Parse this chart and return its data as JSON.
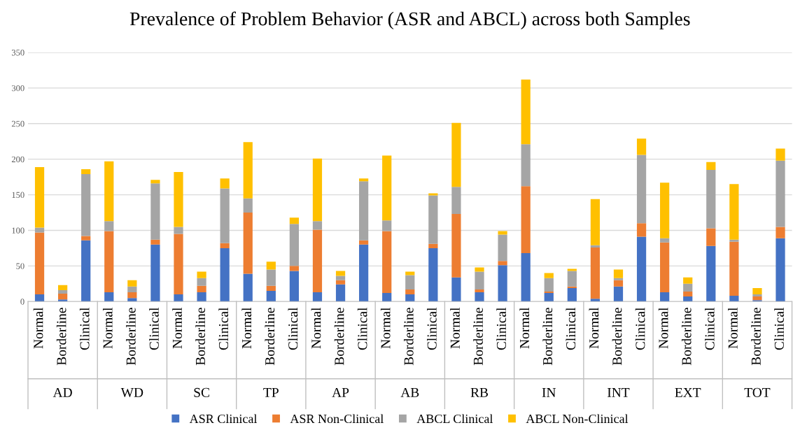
{
  "chart_data": {
    "type": "bar",
    "stacked": true,
    "title": "Prevalence of Problem Behavior (ASR and ABCL) across both Samples",
    "categories": [
      "Normal",
      "Borderline",
      "Clinical",
      "Normal",
      "Borderline",
      "Clinical",
      "Normal",
      "Borderline",
      "Clinical",
      "Normal",
      "Borderline",
      "Clinical",
      "Normal",
      "Borderline",
      "Clinical",
      "Normal",
      "Borderline",
      "Clinical",
      "Normal",
      "Borderline",
      "Clinical",
      "Normal",
      "Borderline",
      "Clinical",
      "Normal",
      "Borderline",
      "Clinical",
      "Normal",
      "Borderline",
      "Clinical",
      "Normal",
      "Borderline",
      "Clinical"
    ],
    "annotations": [
      "AD",
      "WD",
      "SC",
      "TP",
      "AP",
      "AB",
      "RB",
      "IN",
      "INT",
      "EXT",
      "TOT"
    ],
    "series": [
      {
        "name": "ASR Clinical",
        "color": "#4472c4",
        "values": [
          10,
          3,
          86,
          13,
          5,
          80,
          10,
          13,
          75,
          39,
          15,
          43,
          13,
          24,
          80,
          12,
          10,
          75,
          34,
          13,
          51,
          68,
          12,
          19,
          4,
          21,
          91,
          13,
          7,
          78,
          8,
          2,
          89
        ]
      },
      {
        "name": "ASR Non-Clinical",
        "color": "#ed7d31",
        "values": [
          87,
          8,
          6,
          86,
          8,
          7,
          85,
          9,
          7,
          86,
          7,
          7,
          88,
          6,
          6,
          87,
          7,
          6,
          89,
          4,
          6,
          94,
          2,
          2,
          72,
          9,
          19,
          70,
          7,
          25,
          76,
          5,
          16
        ]
      },
      {
        "name": "ABCL Clinical",
        "color": "#a5a5a5",
        "values": [
          7,
          5,
          87,
          14,
          8,
          79,
          10,
          11,
          77,
          20,
          23,
          59,
          12,
          6,
          83,
          15,
          20,
          68,
          38,
          25,
          37,
          59,
          19,
          22,
          3,
          3,
          96,
          6,
          11,
          82,
          3,
          3,
          93
        ]
      },
      {
        "name": "ABCL Non-Clinical",
        "color": "#ffc000",
        "values": [
          85,
          7,
          7,
          84,
          9,
          5,
          77,
          9,
          14,
          79,
          11,
          9,
          88,
          7,
          4,
          91,
          5,
          3,
          90,
          6,
          5,
          91,
          7,
          3,
          65,
          12,
          23,
          78,
          9,
          11,
          78,
          9,
          17
        ]
      }
    ],
    "ylim": [
      0,
      350
    ],
    "yticks": [
      0,
      50,
      100,
      150,
      200,
      250,
      300,
      350
    ],
    "grid": "y",
    "legend": "bottom"
  }
}
